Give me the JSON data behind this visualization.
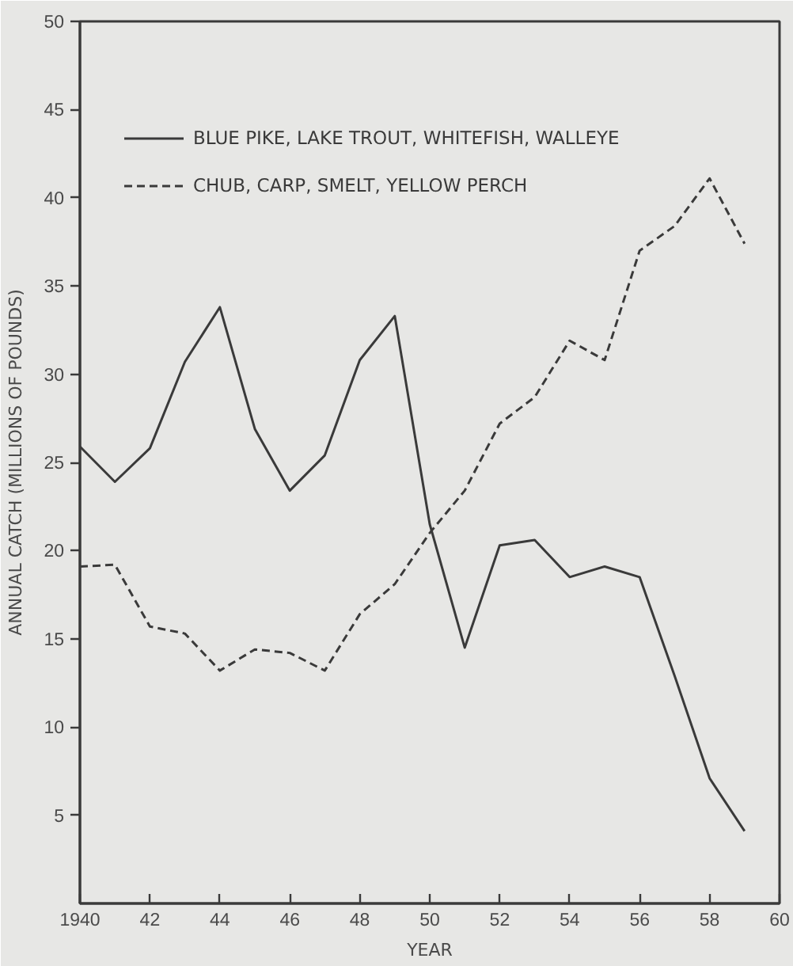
{
  "chart_data": {
    "type": "line",
    "xlabel": "YEAR",
    "ylabel": "ANNUAL CATCH (MILLIONS OF POUNDS)",
    "x": [
      1940,
      1941,
      1942,
      1943,
      1944,
      1945,
      1946,
      1947,
      1948,
      1949,
      1950,
      1951,
      1952,
      1953,
      1954,
      1955,
      1956,
      1957,
      1958,
      1959
    ],
    "xlim": [
      1940,
      1960
    ],
    "xticks": [
      1940,
      {
        "value": 1942,
        "label": "42"
      },
      {
        "value": 1944,
        "label": "44"
      },
      {
        "value": 1946,
        "label": "46"
      },
      {
        "value": 1948,
        "label": "48"
      },
      {
        "value": 1950,
        "label": "50"
      },
      {
        "value": 1952,
        "label": "52"
      },
      {
        "value": 1954,
        "label": "54"
      },
      {
        "value": 1956,
        "label": "56"
      },
      {
        "value": 1958,
        "label": "58"
      },
      {
        "value": 1960,
        "label": "60"
      }
    ],
    "ylim": [
      0,
      50
    ],
    "yticks": [
      5,
      10,
      15,
      20,
      25,
      30,
      35,
      40,
      45,
      50
    ],
    "grid": false,
    "legend": "top left",
    "marker": "none",
    "series": [
      {
        "name": "BLUE PIKE, LAKE TROUT, WHITEFISH, WALLEYE",
        "color": "#3a3a3a",
        "line_style": "solid",
        "values": [
          25.9,
          23.9,
          25.8,
          30.7,
          33.8,
          26.9,
          23.4,
          25.4,
          30.8,
          33.3,
          21.5,
          14.5,
          20.3,
          20.6,
          18.5,
          19.1,
          18.5,
          12.9,
          7.1,
          4.1
        ]
      },
      {
        "name": "CHUB, CARP, SMELT, YELLOW PERCH",
        "color": "#3a3a3a",
        "line_style": "dashed",
        "values": [
          19.1,
          19.2,
          15.7,
          15.3,
          13.2,
          14.4,
          14.2,
          13.2,
          16.4,
          18.1,
          21.0,
          23.4,
          27.2,
          28.7,
          31.9,
          30.8,
          37.0,
          38.4,
          41.1,
          37.4
        ]
      }
    ]
  }
}
